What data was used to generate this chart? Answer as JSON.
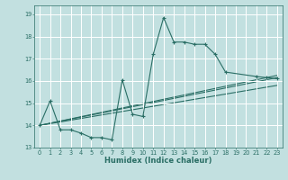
{
  "xlabel": "Humidex (Indice chaleur)",
  "background_color": "#c2e0e0",
  "grid_color": "#ffffff",
  "line_color": "#2a6e65",
  "xlim": [
    -0.5,
    23.5
  ],
  "ylim": [
    13.0,
    19.4
  ],
  "yticks": [
    13,
    14,
    15,
    16,
    17,
    18,
    19
  ],
  "xticks": [
    0,
    1,
    2,
    3,
    4,
    5,
    6,
    7,
    8,
    9,
    10,
    11,
    12,
    13,
    14,
    15,
    16,
    17,
    18,
    19,
    20,
    21,
    22,
    23
  ],
  "main_x": [
    0,
    1,
    2,
    3,
    4,
    5,
    6,
    7,
    8,
    9,
    10,
    11,
    12,
    13,
    14,
    15,
    16,
    17,
    18,
    21,
    22,
    23
  ],
  "main_y": [
    14.0,
    15.1,
    13.8,
    13.8,
    13.65,
    13.45,
    13.45,
    13.35,
    16.05,
    14.5,
    14.4,
    17.2,
    18.85,
    17.75,
    17.75,
    17.65,
    17.65,
    17.2,
    16.4,
    16.2,
    16.15,
    16.1
  ],
  "trend_lines": [
    [
      [
        0,
        23
      ],
      [
        14.0,
        16.15
      ]
    ],
    [
      [
        0,
        23
      ],
      [
        14.0,
        16.25
      ]
    ],
    [
      [
        0,
        23
      ],
      [
        14.0,
        15.8
      ]
    ]
  ],
  "xlabel_fontsize": 6.0,
  "tick_fontsize": 4.8
}
